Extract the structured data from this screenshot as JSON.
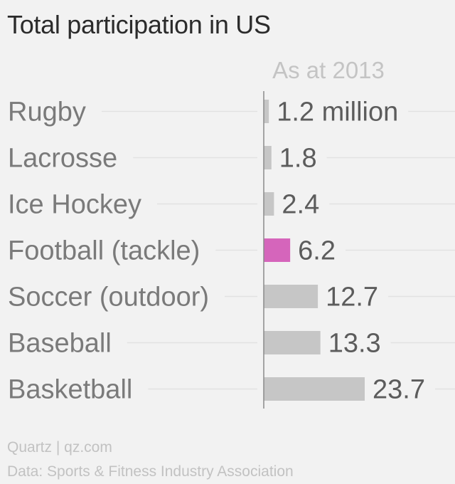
{
  "title": "Total participation in US",
  "footer": {
    "source": "Quartz | qz.com",
    "data_credit": "Data: Sports & Fitness Industry Association"
  },
  "colors": {
    "bar": "#c6c6c6",
    "highlight": "#d565bb",
    "label": "#7a7a7a",
    "value": "#5c5c5c",
    "subtitle": "#c4c4c4",
    "gridline": "#e2e2e2",
    "axis": "#8a8a8a"
  },
  "chart_data": {
    "type": "bar",
    "orientation": "horizontal",
    "subtitle": "As at 2013",
    "categories": [
      "Rugby",
      "Lacrosse",
      "Ice Hockey",
      "Football (tackle)",
      "Soccer (outdoor)",
      "Baseball",
      "Basketball"
    ],
    "values": [
      1.2,
      1.8,
      2.4,
      6.2,
      12.7,
      13.3,
      23.7
    ],
    "value_labels": [
      "1.2 million",
      "1.8",
      "2.4",
      "6.2",
      "12.7",
      "13.3",
      "23.7"
    ],
    "highlighted_category": "Football (tackle)",
    "unit": "million",
    "xlim": [
      0,
      24.8
    ],
    "grid": true
  }
}
